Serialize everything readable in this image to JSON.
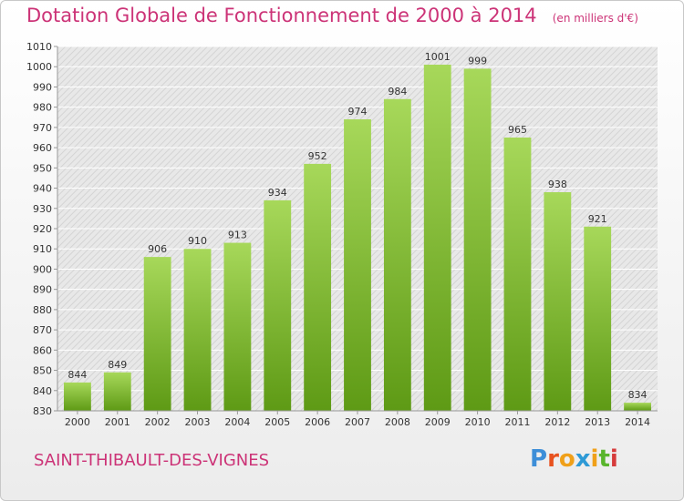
{
  "title": "Dotation Globale de Fonctionnement de 2000 à 2014",
  "unit_note": "(en milliers d'€)",
  "place_name": "SAINT-THIBAULT-DES-VIGNES",
  "logo": {
    "text": "Proxiti",
    "colors": [
      "#3d8ed8",
      "#e8521f",
      "#f0a019",
      "#2e9ad6",
      "#f0a019",
      "#59b52c",
      "#d63b3b"
    ]
  },
  "colors": {
    "bar_top": "#a7d85a",
    "bar_bottom": "#5e9a15",
    "title": "#cc3377"
  },
  "chart_data": {
    "type": "bar",
    "title": "Dotation Globale de Fonctionnement de 2000 à 2014",
    "subtitle": "(en milliers d'€)",
    "xlabel": "",
    "ylabel": "",
    "categories": [
      "2000",
      "2001",
      "2002",
      "2003",
      "2004",
      "2005",
      "2006",
      "2007",
      "2008",
      "2009",
      "2010",
      "2011",
      "2012",
      "2013",
      "2014"
    ],
    "values": [
      844,
      849,
      906,
      910,
      913,
      934,
      952,
      974,
      984,
      1001,
      999,
      965,
      938,
      921,
      834
    ],
    "ylim": [
      830,
      1010
    ],
    "ytick_step": 10,
    "grid": true
  }
}
